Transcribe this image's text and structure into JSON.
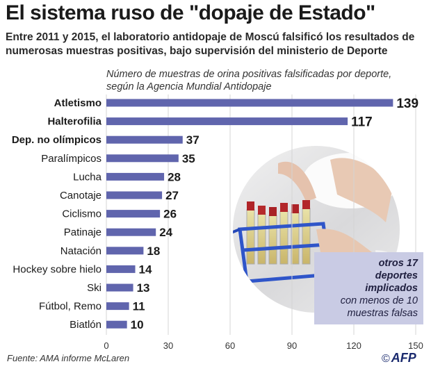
{
  "title": "El sistema ruso de \"dopaje de Estado\"",
  "subtitle": "Entre 2011 y 2015,  el laboratorio antidopaje de Moscú falsificó los resultados de numerosas muestras positivas, bajo supervisión del ministerio de Deporte",
  "note_line1": "Número de muestras de orina positivas falsificadas por deporte,",
  "note_line2": "según la Agencia Mundial Antidopaje",
  "callout": {
    "em_line1": "otros 17",
    "em_line2": "deportes",
    "em_line3": "implicados",
    "rest_line1": "con menos de 10",
    "rest_line2": "muestras falsas"
  },
  "source": "Fuente: AMA informe McLaren",
  "logo": {
    "copyright": "©",
    "text": "AFP"
  },
  "colors": {
    "bar": "#6065ad",
    "grid": "#d4d4d4",
    "callout": "#c9cbe4",
    "text": "#1a1a1a"
  },
  "chart_data": {
    "type": "bar",
    "orientation": "horizontal",
    "categories": [
      "Atletismo",
      "Halterofilia",
      "Dep. no olímpicos",
      "Paralímpicos",
      "Lucha",
      "Canotaje",
      "Ciclismo",
      "Patinaje",
      "Natación",
      "Hockey sobre hielo",
      "Ski",
      "Fútbol, Remo",
      "Biatlón"
    ],
    "values": [
      139,
      117,
      37,
      35,
      28,
      27,
      26,
      24,
      18,
      14,
      13,
      11,
      10
    ],
    "bold_categories": [
      "Atletismo",
      "Halterofilia",
      "Dep. no olímpicos"
    ],
    "xlim": [
      0,
      150
    ],
    "xticks": [
      0,
      30,
      60,
      90,
      120,
      150
    ],
    "grid": true,
    "title": "",
    "xlabel": "",
    "ylabel": ""
  }
}
